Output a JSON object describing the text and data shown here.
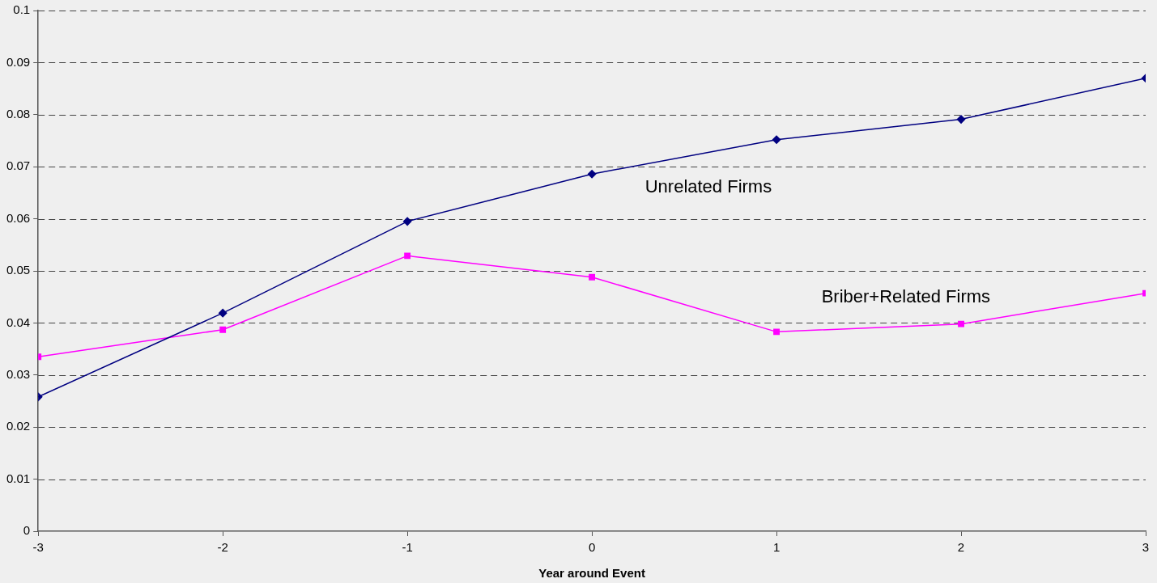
{
  "chart_data": {
    "type": "line",
    "xlabel": "Year around Event",
    "x": [
      -3,
      -2,
      -1,
      0,
      1,
      2,
      3
    ],
    "xlim": [
      -3,
      3
    ],
    "xticks": [
      -3,
      -2,
      -1,
      0,
      1,
      2,
      3
    ],
    "ylim": [
      0,
      0.1
    ],
    "yticks": [
      0,
      0.01,
      0.02,
      0.03,
      0.04,
      0.05,
      0.06,
      0.07,
      0.08,
      0.09,
      0.1
    ],
    "grid": "y",
    "legend": false,
    "line_style": "solid",
    "series": [
      {
        "name": "Unrelated Firms",
        "color": "#000080",
        "marker": "diamond",
        "values": [
          0.0258,
          0.0419,
          0.0595,
          0.0686,
          0.0752,
          0.0791,
          0.087
        ]
      },
      {
        "name": "Briber+Related Firms",
        "color": "#ff00ff",
        "marker": "square",
        "values": [
          0.0335,
          0.0387,
          0.0529,
          0.0488,
          0.0383,
          0.0398,
          0.0457
        ]
      }
    ]
  }
}
